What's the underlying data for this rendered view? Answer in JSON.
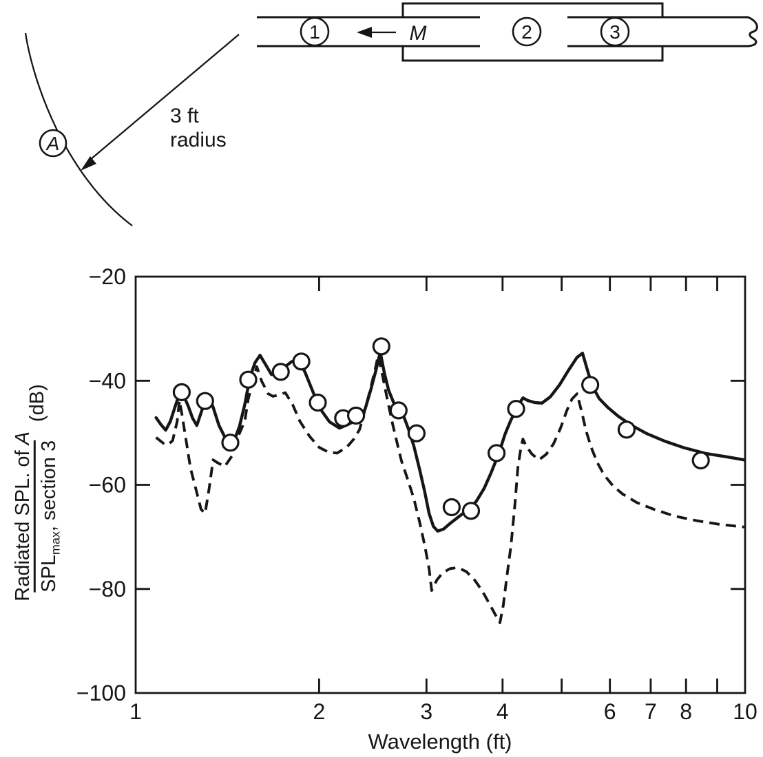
{
  "diagram": {
    "arc_point_label": "A",
    "radius_note_line1": "3 ft",
    "radius_note_line2": "radius",
    "source_label": "M",
    "section_labels": [
      "1",
      "2",
      "3"
    ]
  },
  "chart_data": {
    "type": "line+scatter",
    "xlabel": "Wavelength (ft)",
    "ylabel": {
      "numerator_pre": "Radiated SPL. of ",
      "numerator_italic": "A",
      "den_main": "SPL",
      "den_sub": "max",
      "den_rest": ", section 3",
      "units": "(dB)"
    },
    "x_axis": {
      "scale": "log",
      "min": 1,
      "max": 10,
      "labeled_ticks": [
        {
          "value": 1,
          "label": "1"
        },
        {
          "value": 2,
          "label": "2"
        },
        {
          "value": 3,
          "label": "3"
        },
        {
          "value": 4,
          "label": "4"
        },
        {
          "value": 6,
          "label": "6"
        },
        {
          "value": 7,
          "label": "7"
        },
        {
          "value": 8,
          "label": "8"
        },
        {
          "value": 10,
          "label": "10"
        }
      ],
      "mark_ticks": [
        2,
        3,
        4,
        5,
        6,
        7,
        8,
        9
      ]
    },
    "y_axis": {
      "min": -100,
      "max": -20,
      "labeled_ticks": [
        {
          "value": -20,
          "label": "−20"
        },
        {
          "value": -40,
          "label": "−40"
        },
        {
          "value": -60,
          "label": "−60"
        },
        {
          "value": -80,
          "label": "−80"
        },
        {
          "value": -100,
          "label": "−100"
        }
      ],
      "mark_ticks": [
        -40,
        -60,
        -80
      ]
    },
    "series": [
      {
        "name": "theory-solid",
        "style": "solid",
        "points": [
          [
            1.08,
            -47.1
          ],
          [
            1.1,
            -48.4
          ],
          [
            1.12,
            -49.5
          ],
          [
            1.14,
            -47.8
          ],
          [
            1.16,
            -45.1
          ],
          [
            1.18,
            -42.5
          ],
          [
            1.19,
            -42.0
          ],
          [
            1.22,
            -44.9
          ],
          [
            1.24,
            -47.2
          ],
          [
            1.26,
            -48.6
          ],
          [
            1.28,
            -46.2
          ],
          [
            1.3,
            -43.8
          ],
          [
            1.32,
            -43.0
          ],
          [
            1.34,
            -45.1
          ],
          [
            1.37,
            -48.6
          ],
          [
            1.41,
            -51.5
          ],
          [
            1.44,
            -52.5
          ],
          [
            1.48,
            -48.8
          ],
          [
            1.51,
            -44.6
          ],
          [
            1.54,
            -39.3
          ],
          [
            1.57,
            -36.5
          ],
          [
            1.6,
            -35.1
          ],
          [
            1.64,
            -37.2
          ],
          [
            1.67,
            -38.8
          ],
          [
            1.71,
            -38.6
          ],
          [
            1.75,
            -37.5
          ],
          [
            1.8,
            -36.4
          ],
          [
            1.85,
            -35.6
          ],
          [
            1.9,
            -38.6
          ],
          [
            1.96,
            -42.5
          ],
          [
            2.02,
            -45.8
          ],
          [
            2.08,
            -47.9
          ],
          [
            2.16,
            -49.1
          ],
          [
            2.23,
            -48.4
          ],
          [
            2.3,
            -47.6
          ],
          [
            2.34,
            -47.0
          ],
          [
            2.38,
            -45.4
          ],
          [
            2.43,
            -41.8
          ],
          [
            2.48,
            -37.9
          ],
          [
            2.52,
            -34.5
          ],
          [
            2.56,
            -38.6
          ],
          [
            2.6,
            -41.8
          ],
          [
            2.65,
            -44.2
          ],
          [
            2.7,
            -45.5
          ],
          [
            2.75,
            -46.7
          ],
          [
            2.8,
            -49.1
          ],
          [
            2.86,
            -52.5
          ],
          [
            2.92,
            -56.8
          ],
          [
            2.98,
            -61.3
          ],
          [
            3.03,
            -65.5
          ],
          [
            3.08,
            -68.0
          ],
          [
            3.13,
            -68.9
          ],
          [
            3.2,
            -68.5
          ],
          [
            3.29,
            -67.3
          ],
          [
            3.4,
            -66.0
          ],
          [
            3.51,
            -64.8
          ],
          [
            3.62,
            -63.2
          ],
          [
            3.73,
            -60.7
          ],
          [
            3.83,
            -57.7
          ],
          [
            3.94,
            -54.1
          ],
          [
            4.04,
            -50.2
          ],
          [
            4.13,
            -47.5
          ],
          [
            4.21,
            -45.7
          ],
          [
            4.27,
            -44.2
          ],
          [
            4.32,
            -43.3
          ],
          [
            4.4,
            -43.8
          ],
          [
            4.52,
            -44.2
          ],
          [
            4.64,
            -44.3
          ],
          [
            4.79,
            -43.1
          ],
          [
            4.96,
            -40.8
          ],
          [
            5.13,
            -38.0
          ],
          [
            5.3,
            -35.5
          ],
          [
            5.41,
            -34.7
          ],
          [
            5.51,
            -37.9
          ],
          [
            5.61,
            -40.9
          ],
          [
            5.76,
            -43.4
          ],
          [
            5.95,
            -45.1
          ],
          [
            6.19,
            -46.8
          ],
          [
            6.52,
            -48.6
          ],
          [
            6.91,
            -50.2
          ],
          [
            7.38,
            -51.6
          ],
          [
            7.95,
            -52.9
          ],
          [
            8.63,
            -54.0
          ],
          [
            9.31,
            -54.6
          ],
          [
            9.96,
            -55.2
          ]
        ]
      },
      {
        "name": "theory-dashed",
        "style": "dashed",
        "points": [
          [
            1.08,
            -50.9
          ],
          [
            1.11,
            -52.0
          ],
          [
            1.13,
            -52.3
          ],
          [
            1.15,
            -51.5
          ],
          [
            1.17,
            -47.8
          ],
          [
            1.18,
            -43.8
          ],
          [
            1.19,
            -46.2
          ],
          [
            1.21,
            -51.5
          ],
          [
            1.23,
            -56.8
          ],
          [
            1.26,
            -61.5
          ],
          [
            1.28,
            -64.7
          ],
          [
            1.3,
            -65.5
          ],
          [
            1.32,
            -60.7
          ],
          [
            1.34,
            -55.2
          ],
          [
            1.36,
            -55.7
          ],
          [
            1.4,
            -56.5
          ],
          [
            1.44,
            -54.4
          ],
          [
            1.47,
            -50.9
          ],
          [
            1.51,
            -47.8
          ],
          [
            1.53,
            -43.5
          ],
          [
            1.56,
            -40.0
          ],
          [
            1.58,
            -37.3
          ],
          [
            1.61,
            -40.1
          ],
          [
            1.65,
            -42.5
          ],
          [
            1.68,
            -43.0
          ],
          [
            1.72,
            -42.7
          ],
          [
            1.76,
            -42.3
          ],
          [
            1.81,
            -44.6
          ],
          [
            1.86,
            -47.8
          ],
          [
            1.93,
            -50.7
          ],
          [
            2.0,
            -52.8
          ],
          [
            2.07,
            -53.7
          ],
          [
            2.14,
            -53.9
          ],
          [
            2.22,
            -52.8
          ],
          [
            2.28,
            -51.2
          ],
          [
            2.33,
            -49.4
          ],
          [
            2.37,
            -46.2
          ],
          [
            2.42,
            -42.2
          ],
          [
            2.47,
            -38.0
          ],
          [
            2.5,
            -35.1
          ],
          [
            2.54,
            -38.9
          ],
          [
            2.59,
            -43.8
          ],
          [
            2.64,
            -48.3
          ],
          [
            2.69,
            -52.3
          ],
          [
            2.73,
            -55.4
          ],
          [
            2.79,
            -58.7
          ],
          [
            2.86,
            -62.6
          ],
          [
            2.92,
            -66.9
          ],
          [
            2.98,
            -71.6
          ],
          [
            3.03,
            -76.1
          ],
          [
            3.06,
            -80.3
          ],
          [
            3.12,
            -78.3
          ],
          [
            3.19,
            -76.9
          ],
          [
            3.28,
            -76.1
          ],
          [
            3.38,
            -75.9
          ],
          [
            3.49,
            -76.7
          ],
          [
            3.6,
            -78.3
          ],
          [
            3.7,
            -80.3
          ],
          [
            3.8,
            -82.7
          ],
          [
            3.89,
            -84.9
          ],
          [
            3.96,
            -86.5
          ],
          [
            4.01,
            -83.2
          ],
          [
            4.06,
            -78.2
          ],
          [
            4.13,
            -71.6
          ],
          [
            4.19,
            -63.8
          ],
          [
            4.24,
            -56.5
          ],
          [
            4.29,
            -52.7
          ],
          [
            4.32,
            -51.2
          ],
          [
            4.37,
            -52.5
          ],
          [
            4.47,
            -54.1
          ],
          [
            4.59,
            -55.2
          ],
          [
            4.72,
            -54.1
          ],
          [
            4.85,
            -52.1
          ],
          [
            4.98,
            -49.1
          ],
          [
            5.1,
            -45.7
          ],
          [
            5.2,
            -43.5
          ],
          [
            5.3,
            -42.5
          ],
          [
            5.4,
            -46.2
          ],
          [
            5.48,
            -49.5
          ],
          [
            5.59,
            -52.8
          ],
          [
            5.72,
            -55.7
          ],
          [
            5.87,
            -58.1
          ],
          [
            6.07,
            -60.2
          ],
          [
            6.3,
            -61.8
          ],
          [
            6.64,
            -63.4
          ],
          [
            7.08,
            -64.7
          ],
          [
            7.66,
            -66.0
          ],
          [
            8.34,
            -66.9
          ],
          [
            9.09,
            -67.6
          ],
          [
            9.96,
            -68.1
          ]
        ]
      },
      {
        "name": "measured-points",
        "style": "scatter",
        "points": [
          [
            1.19,
            -42.2
          ],
          [
            1.3,
            -43.9
          ],
          [
            1.43,
            -51.9
          ],
          [
            1.53,
            -39.8
          ],
          [
            1.73,
            -38.3
          ],
          [
            1.87,
            -36.3
          ],
          [
            1.99,
            -44.2
          ],
          [
            2.19,
            -47.2
          ],
          [
            2.3,
            -46.7
          ],
          [
            2.53,
            -33.4
          ],
          [
            2.7,
            -45.7
          ],
          [
            2.89,
            -50.1
          ],
          [
            3.3,
            -64.3
          ],
          [
            3.55,
            -65.0
          ],
          [
            3.91,
            -53.9
          ],
          [
            4.21,
            -45.4
          ],
          [
            5.57,
            -40.8
          ],
          [
            6.39,
            -49.4
          ],
          [
            8.46,
            -55.3
          ]
        ]
      }
    ]
  }
}
